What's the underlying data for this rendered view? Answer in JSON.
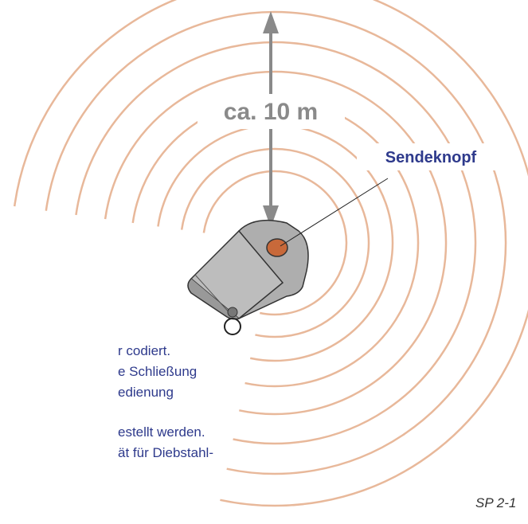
{
  "labels": {
    "distance": "ca. 10 m",
    "button": "Sendeknopf"
  },
  "text_lines": [
    "r codiert.",
    "e Schließung",
    "edienung",
    "estellt werden.",
    "ät für Diebstahl-"
  ],
  "figure_code": "SP 2-1"
}
